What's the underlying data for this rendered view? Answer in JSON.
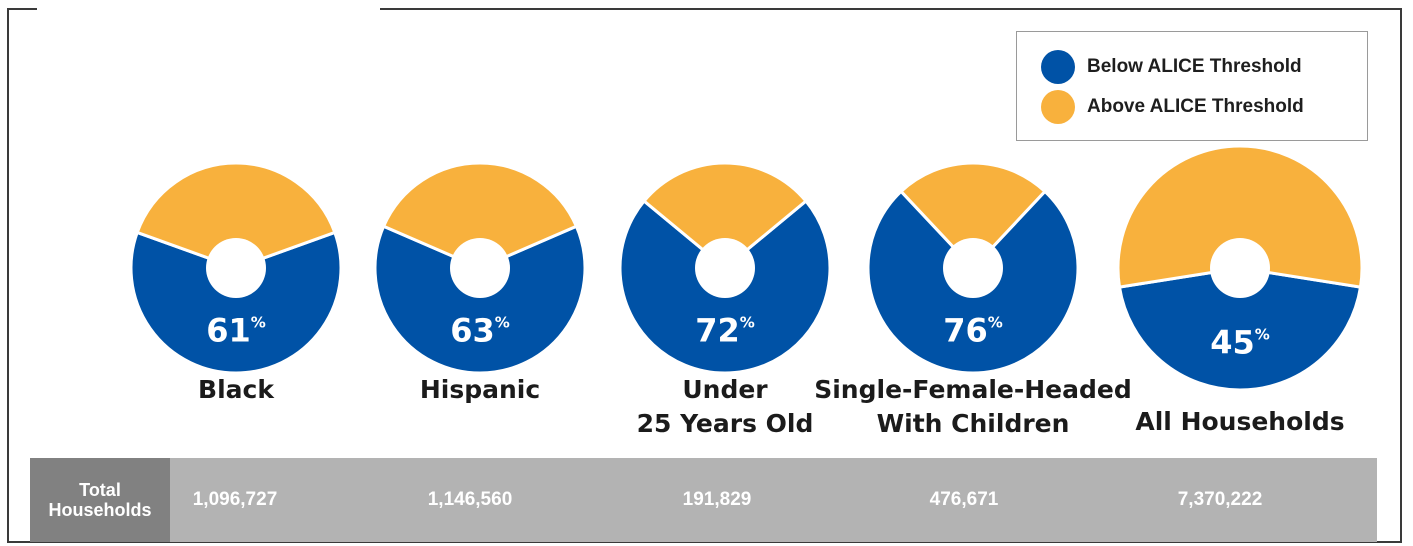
{
  "legend": {
    "below_label": "Below ALICE Threshold",
    "above_label": "Above ALICE Threshold"
  },
  "colors": {
    "below": "#0052a6",
    "above": "#f8b13d"
  },
  "totals": {
    "header": "Total\nHouseholds"
  },
  "chart_data": {
    "type": "pie",
    "series": [
      {
        "name": "Below ALICE Threshold"
      },
      {
        "name": "Above ALICE Threshold"
      }
    ],
    "categories": [
      {
        "label": "Black",
        "below_pct": 61,
        "percent_text": "61",
        "total_households": "1,096,727"
      },
      {
        "label": "Hispanic",
        "below_pct": 63,
        "percent_text": "63",
        "total_households": "1,146,560"
      },
      {
        "label": "Under\n25 Years Old",
        "below_pct": 72,
        "percent_text": "72",
        "total_households": "191,829"
      },
      {
        "label": "Single-Female-Headed\nWith Children",
        "below_pct": 76,
        "percent_text": "76",
        "total_households": "476,671"
      },
      {
        "label": "All Households",
        "below_pct": 45,
        "percent_text": "45",
        "total_households": "7,370,222"
      }
    ]
  }
}
